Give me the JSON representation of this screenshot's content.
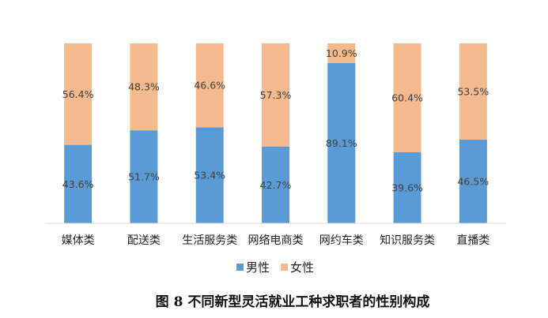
{
  "chart_data": {
    "type": "bar",
    "stacked": true,
    "percent": true,
    "categories": [
      "媒体类",
      "配送类",
      "生活服务类",
      "网络电商类",
      "网约车类",
      "知识服务类",
      "直播类"
    ],
    "series": [
      {
        "name": "男性",
        "color": "#5b9bd5",
        "values": [
          43.6,
          51.7,
          53.4,
          42.7,
          89.1,
          39.6,
          46.5
        ],
        "labels": [
          "43.6%",
          "51.7%",
          "53.4%",
          "42.7%",
          "89.1%",
          "39.6%",
          "46.5%"
        ]
      },
      {
        "name": "女性",
        "color": "#f4b98c",
        "values": [
          56.4,
          48.3,
          46.6,
          57.3,
          10.9,
          60.4,
          53.5
        ],
        "labels": [
          "56.4%",
          "48.3%",
          "46.6%",
          "57.3%",
          "10.9%",
          "60.4%",
          "53.5%"
        ]
      }
    ],
    "ylim": [
      0,
      100
    ],
    "grid": false,
    "legend_position": "bottom",
    "caption": "图 8  不同新型灵活就业工种求职者的性别构成"
  }
}
